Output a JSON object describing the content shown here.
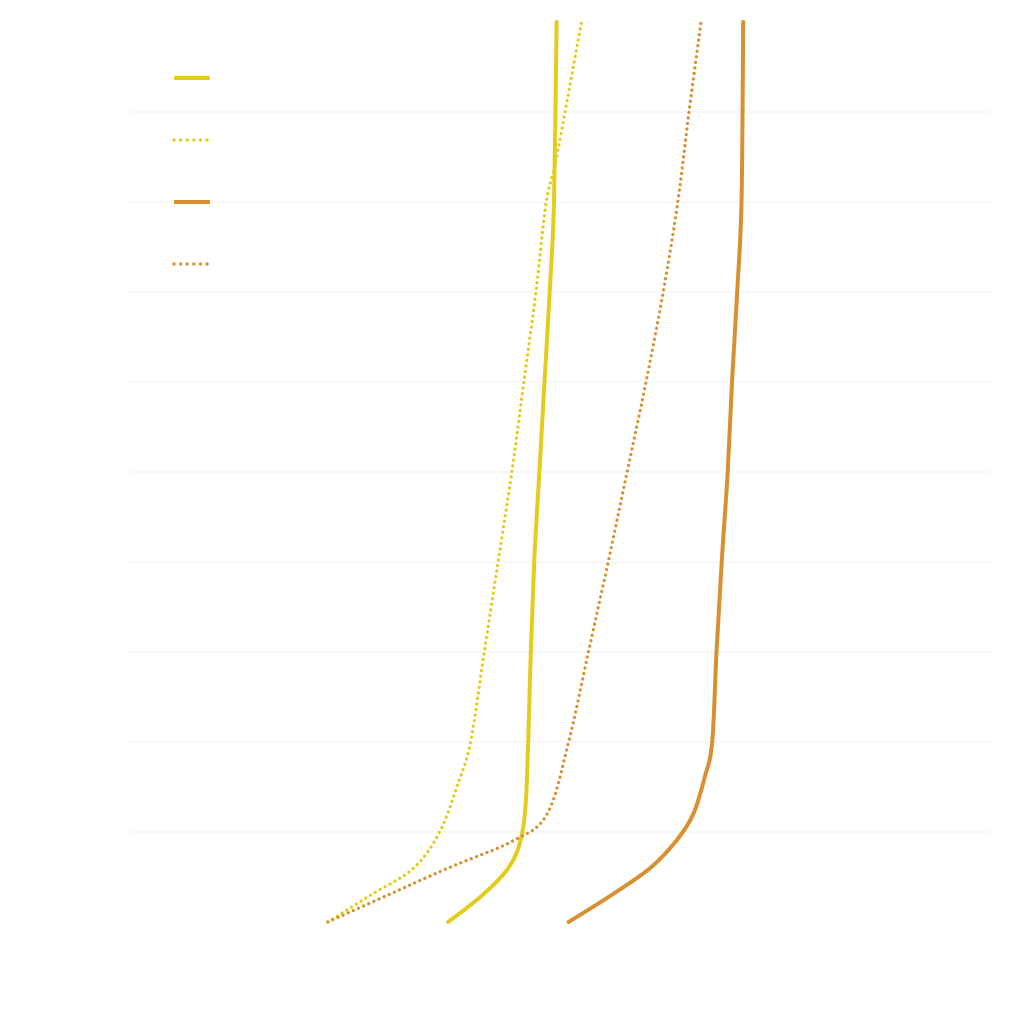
{
  "chart_data": {
    "type": "line",
    "title": "",
    "xlabel": "",
    "ylabel": "",
    "xlim": [
      0,
      100
    ],
    "ylim": [
      0,
      100
    ],
    "grid": {
      "y": true,
      "x": false
    },
    "y_grid_values": [
      10,
      20,
      30,
      40,
      50,
      60,
      70,
      80,
      90
    ],
    "legend_position": "top-left",
    "series": [
      {
        "color": "#e3cc1c",
        "dash": "solid",
        "x": [
          37,
          41,
          44,
          45.4,
          46,
          46.3,
          46.6,
          47,
          47.6,
          48.2,
          48.8,
          49.3,
          49.6
        ],
        "y": [
          0,
          3,
          6,
          9,
          13,
          20,
          30,
          40,
          50,
          60,
          70,
          80,
          100
        ]
      },
      {
        "color": "#e3cc1c",
        "dash": "dotted",
        "x": [
          23,
          28,
          33,
          36,
          38,
          39.6,
          41.2,
          42.8,
          44.4,
          45.8,
          47.2,
          48.4,
          49.6,
          52.5
        ],
        "y": [
          0,
          3,
          6,
          10,
          15,
          20,
          30,
          40,
          50,
          60,
          70,
          80,
          85,
          100
        ]
      },
      {
        "color": "#d89030",
        "dash": "solid",
        "x": [
          51,
          56,
          60.5,
          63.5,
          65.5,
          66.8,
          67.7,
          68.2,
          68.8,
          69.5,
          70,
          70.6,
          71.1,
          71.3
        ],
        "y": [
          0,
          3,
          6,
          9,
          12,
          16,
          20,
          30,
          40,
          50,
          60,
          70,
          80,
          100
        ]
      },
      {
        "color": "#d89030",
        "dash": "dotted",
        "x": [
          23,
          30,
          37,
          44.5,
          48.5,
          51,
          53.3,
          55.6,
          57.8,
          60,
          62,
          63.7,
          65,
          66.4
        ],
        "y": [
          0,
          3,
          6,
          9,
          12,
          20,
          30,
          40,
          50,
          60,
          70,
          80,
          90,
          100
        ]
      }
    ]
  },
  "legend": {
    "items": [
      {
        "label": "",
        "color": "#e3cc1c",
        "dash": "solid"
      },
      {
        "label": "",
        "color": "#e3cc1c",
        "dash": "dotted"
      },
      {
        "label": "",
        "color": "#d89030",
        "dash": "solid"
      },
      {
        "label": "",
        "color": "#d89030",
        "dash": "dotted"
      }
    ]
  }
}
